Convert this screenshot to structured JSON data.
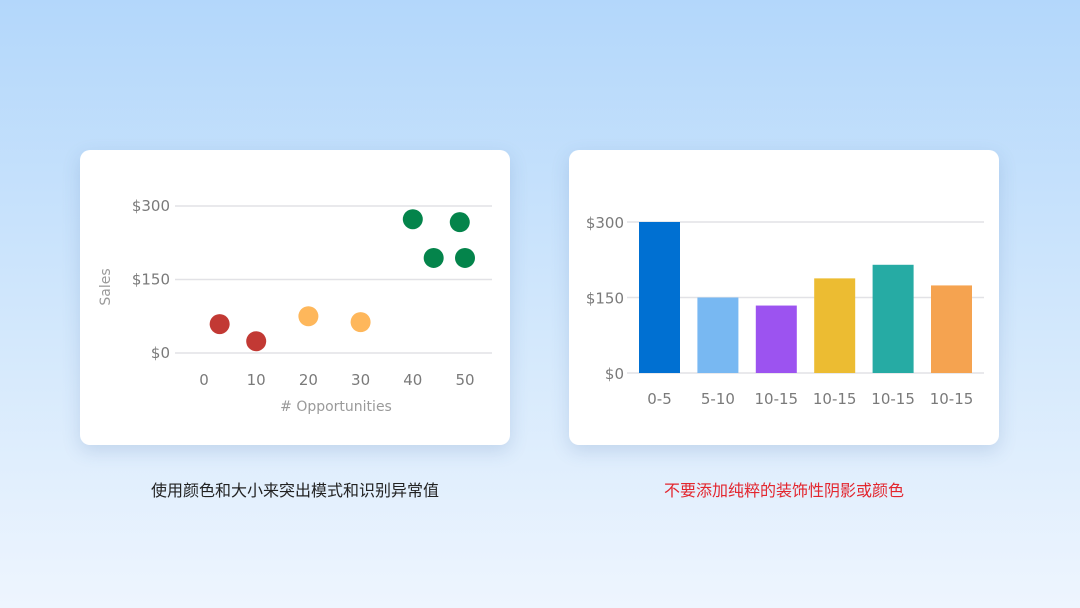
{
  "chart_data": [
    {
      "type": "scatter",
      "xlabel": "# Opportunities",
      "ylabel": "Sales",
      "xlim": [
        0,
        50
      ],
      "ylim": [
        0,
        300
      ],
      "x_ticks": [
        "0",
        "10",
        "20",
        "30",
        "40",
        "50"
      ],
      "y_ticks": [
        "$0",
        "$150",
        "$300"
      ],
      "grid": true,
      "points": [
        {
          "x": 3,
          "y": 59,
          "color": "#c23934"
        },
        {
          "x": 10,
          "y": 24,
          "color": "#c23934"
        },
        {
          "x": 20,
          "y": 75,
          "color": "#feb75b"
        },
        {
          "x": 30,
          "y": 63,
          "color": "#feb75b"
        },
        {
          "x": 40,
          "y": 273,
          "color": "#04844b"
        },
        {
          "x": 44,
          "y": 194,
          "color": "#04844b"
        },
        {
          "x": 49,
          "y": 267,
          "color": "#04844b"
        },
        {
          "x": 50,
          "y": 194,
          "color": "#04844b"
        }
      ]
    },
    {
      "type": "bar",
      "categories": [
        "0-5",
        "5-10",
        "10-15",
        "10-15",
        "10-15",
        "10-15"
      ],
      "values": [
        300,
        150,
        134,
        188,
        215,
        174
      ],
      "colors": [
        "#0070d2",
        "#78b8f2",
        "#9c53f0",
        "#ecbc32",
        "#26aba4",
        "#f5a350"
      ],
      "ylim": [
        0,
        300
      ],
      "y_ticks": [
        "$0",
        "$150",
        "$300"
      ],
      "grid": true
    }
  ],
  "captions": {
    "left": "使用颜色和大小来突出模式和识别异常值",
    "right": "不要添加纯粹的装饰性阴影或颜色"
  },
  "colors": {
    "caption_warning": "#e3262e"
  }
}
